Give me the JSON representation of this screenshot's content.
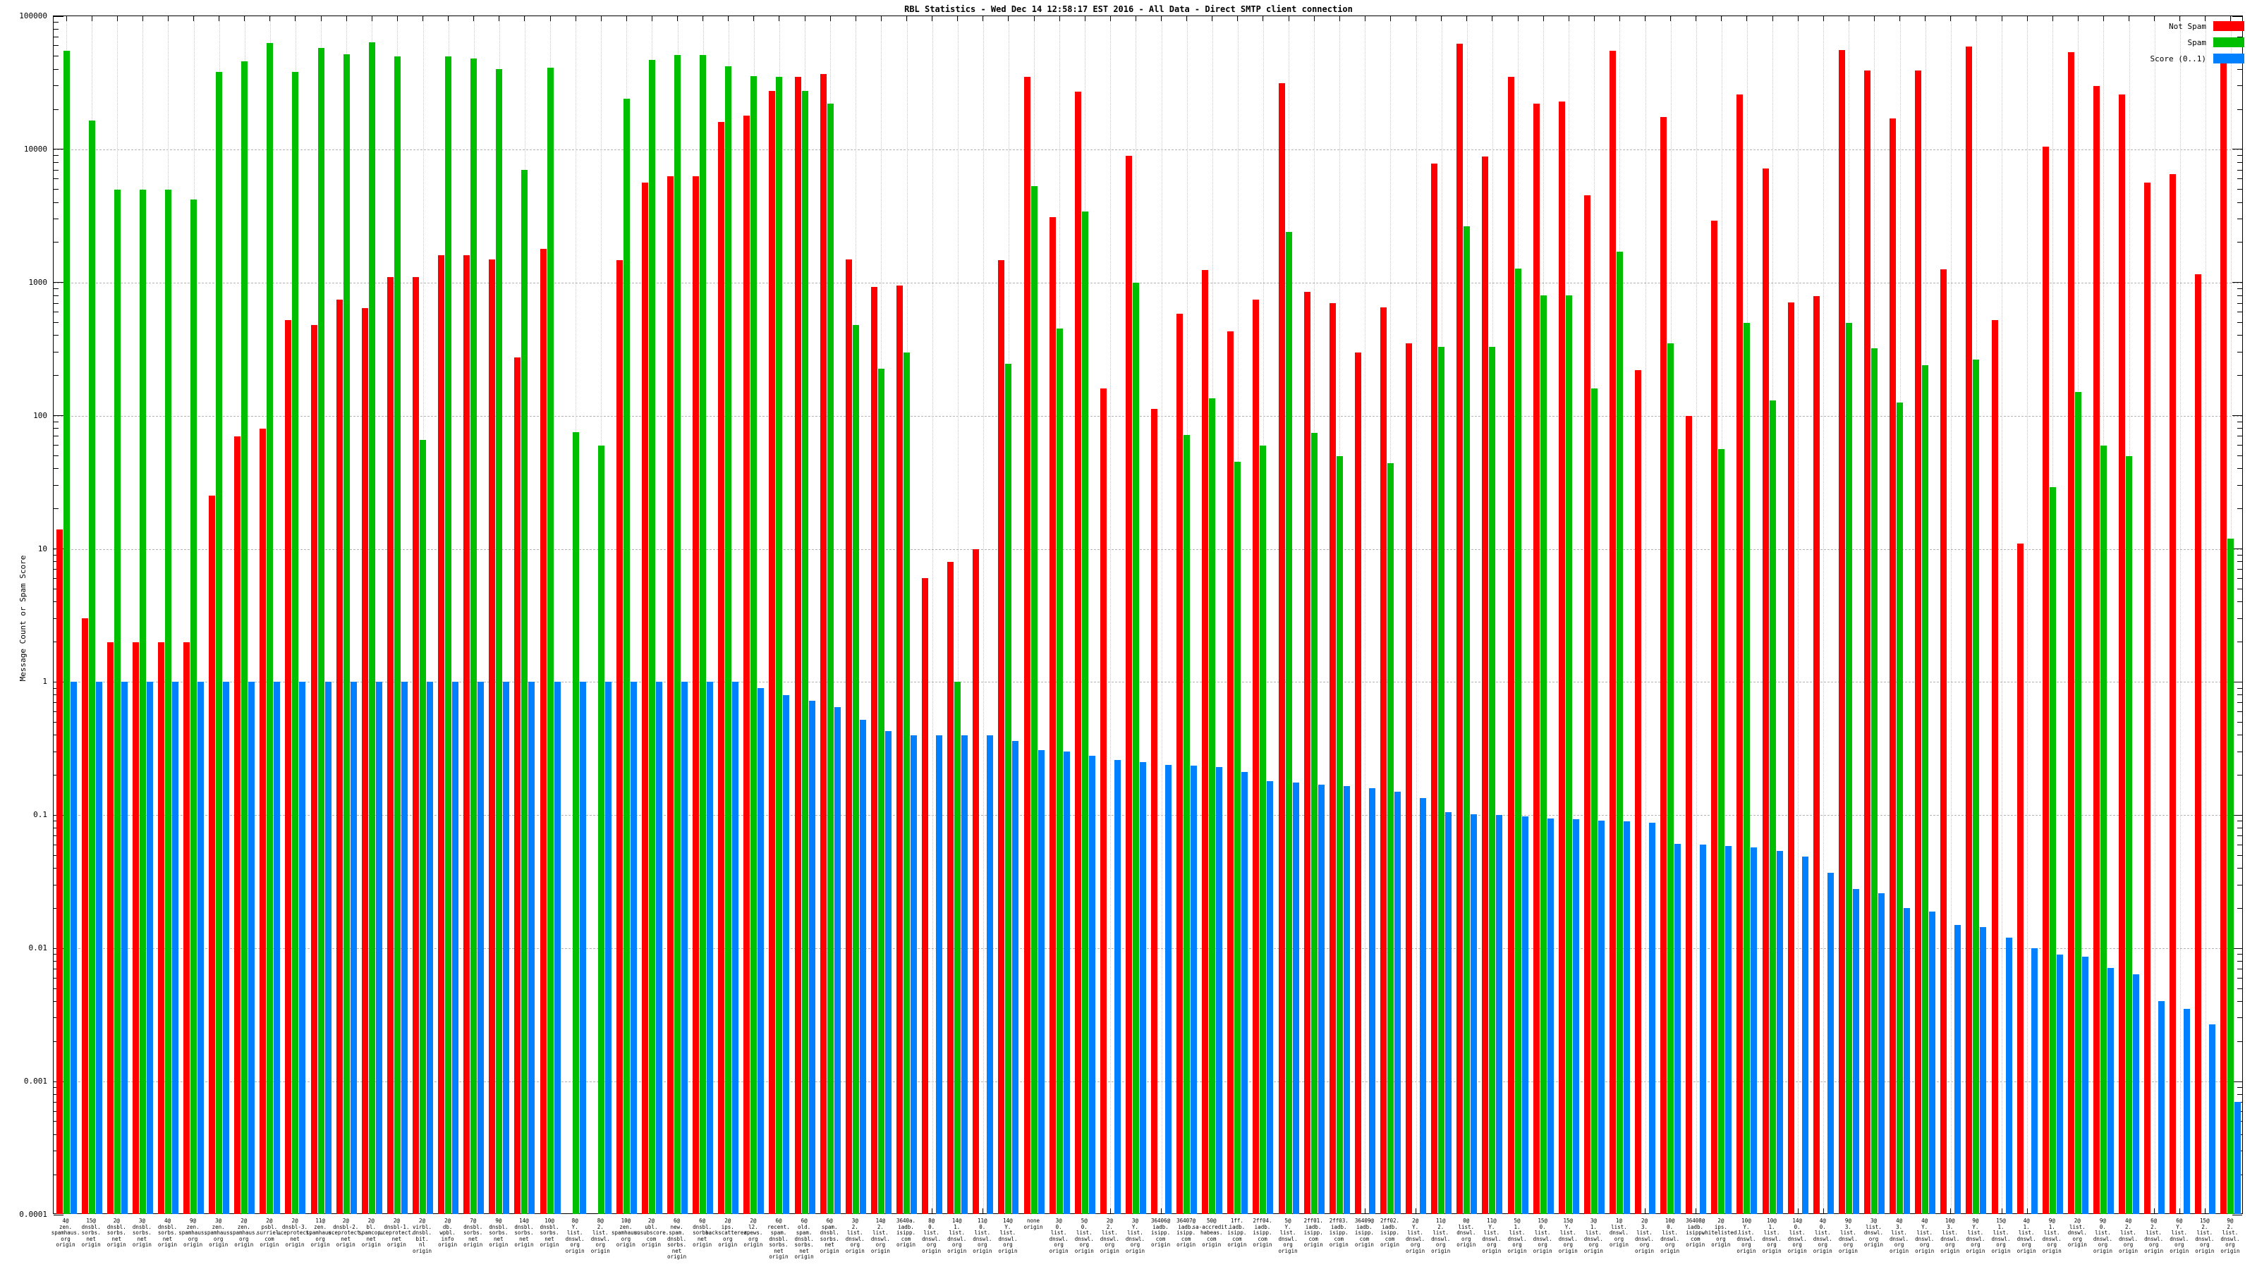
{
  "chart_data": {
    "type": "bar",
    "title": "RBL Statistics - Wed Dec 14 12:58:17 EST 2016 - All Data - Direct SMTP client connection",
    "ylabel": "Message Count or Spam Score",
    "xlabel": "",
    "yscale": "log",
    "ylim": [
      0.0001,
      100000
    ],
    "ytick_labels": [
      "100000",
      "10000",
      "1000",
      "100",
      "10",
      "1",
      "0.1",
      "0.01",
      "0.001",
      "0.0001"
    ],
    "grid": true,
    "legend_position": "top-right",
    "legend": [
      {
        "label": "Not Spam",
        "color": "#ff0000"
      },
      {
        "label": "Spam",
        "color": "#00bf00"
      },
      {
        "label": "Score (0..1)",
        "color": "#0080ff"
      }
    ],
    "categories": [
      "4@\nzen.\nspamhaus.\norg\norigin",
      "15@\ndnsbl.\nsorbs.\nnet\norigin",
      "2@\ndnsbl.\nsorbs.\nnet\norigin",
      "3@\ndnsbl.\nsorbs.\nnet\norigin",
      "4@\ndnsbl.\nsorbs.\nnet\norigin",
      "9@\nzen.\nspamhaus.\norg\norigin",
      "3@\nzen.\nspamhaus.\norg\norigin",
      "2@\nzen.\nspamhaus.\norg\norigin",
      "2@\npsbl.\nsurriel.\ncom\norigin",
      "2@\ndnsbl-3.\nuceprotect.\nnet\norigin",
      "11@\nzen.\nspamhaus.\norg\norigin",
      "2@\ndnsbl-2.\nuceprotect.\nnet\norigin",
      "2@\nbl.\nspamcop.\nnet\norigin",
      "2@\ndnsbl-1.\nuceprotect.\nnet\norigin",
      "2@\nvirbl.\ndnsbl.\nbit.\nnl\norigin",
      "2@\ndb.\nwpbl.\ninfo\norigin",
      "7@\ndnsbl.\nsorbs.\nnet\norigin",
      "9@\ndnsbl.\nsorbs.\nnet\norigin",
      "14@\ndnsbl.\nsorbs.\nnet\norigin",
      "10@\ndnsbl.\nsorbs.\nnet\norigin",
      "8@\nY.\nlist.\ndnswl.\norg\norigin",
      "8@\n2.\nlist.\ndnswl.\norg\norigin",
      "10@\nzen.\nspamhaus.\norg\norigin",
      "2@\nubl.\nunsubscore.\ncom\norigin",
      "6@\nnew.\nspam.\ndnsbl.\nsorbs.\nnet\norigin",
      "6@\ndnsbl.\nsorbs.\nnet\norigin",
      "2@\nips.\nbackscatterer.\norg\norigin",
      "2@\nl2.\napews.\norg\norigin",
      "6@\nrecent.\nspam.\ndnsbl.\nsorbs.\nnet\norigin",
      "6@\nold.\nspam.\ndnsbl.\nsorbs.\nnet\norigin",
      "6@\nspam.\ndnsbl.\nsorbs.\nnet\norigin",
      "3@\n2.\nlist.\ndnswl.\norg\norigin",
      "14@\n2.\nlist.\ndnswl.\norg\norigin",
      "3640a.\niadb.\nisipp.\ncom\norigin",
      "8@\n0.\nlist.\ndnswl.\norg\norigin",
      "14@\n1.\nlist.\ndnswl.\norg\norigin",
      "11@\n0.\nlist.\ndnswl.\norg\norigin",
      "14@\nY.\nlist.\ndnswl.\norg\norigin",
      "none\norigin",
      "3@\n0.\nlist.\ndnswl.\norg\norigin",
      "5@\n0.\nlist.\ndnswl.\norg\norigin",
      "2@\n2.\nlist.\ndnswl.\norg\norigin",
      "3@\nY.\nlist.\ndnswl.\norg\norigin",
      "36406@\niadb.\nisipp.\ncom\norigin",
      "36407@\niadb.\nisipp.\ncom\norigin",
      "50@\nsa-accredit.\nhabeas.\ncom\norigin",
      "1ff.\niadb.\nisipp.\ncom\norigin",
      "2ff04.\niadb.\nisipp.\ncom\norigin",
      "5@\nY.\nlist.\ndnswl.\norg\norigin",
      "2ff01.\niadb.\nisipp.\ncom\norigin",
      "2ff03.\niadb.\nisipp.\ncom\norigin",
      "36409@\niadb.\nisipp.\ncom\norigin",
      "2ff02.\niadb.\nisipp.\ncom\norigin",
      "2@\nY.\nlist.\ndnswl.\norg\norigin",
      "11@\n2.\nlist.\ndnswl.\norg\norigin",
      "0@\nlist.\ndnswl.\norg\norigin",
      "11@\nY.\nlist.\ndnswl.\norg\norigin",
      "5@\n1.\nlist.\ndnswl.\norg\norigin",
      "15@\n0.\nlist.\ndnswl.\norg\norigin",
      "15@\nY.\nlist.\ndnswl.\norg\norigin",
      "3@\n1.\nlist.\ndnswl.\norg\norigin",
      "1@\nlist.\ndnswl.\norg\norigin",
      "2@\n3.\nlist.\ndnswl.\norg\norigin",
      "10@\n0.\nlist.\ndnswl.\norg\norigin",
      "36408@\niadb.\nisipp.\ncom\norigin",
      "2@\nips.\nwhitelisted.\norg\norigin",
      "10@\nY.\nlist.\ndnswl.\norg\norigin",
      "10@\n1.\nlist.\ndnswl.\norg\norigin",
      "14@\n0.\nlist.\ndnswl.\norg\norigin",
      "4@\n0.\nlist.\ndnswl.\norg\norigin",
      "9@\n3.\nlist.\ndnswl.\norg\norigin",
      "3@\nlist.\ndnswl.\norg\norigin",
      "4@\n3.\nlist.\ndnswl.\norg\norigin",
      "4@\nY.\nlist.\ndnswl.\norg\norigin",
      "10@\n3.\nlist.\ndnswl.\norg\norigin",
      "9@\nY.\nlist.\ndnswl.\norg\norigin",
      "15@\n1.\nlist.\ndnswl.\norg\norigin",
      "4@\n1.\nlist.\ndnswl.\norg\norigin",
      "9@\n1.\nlist.\ndnswl.\norg\norigin",
      "2@\nlist.\ndnswl.\norg\norigin",
      "9@\n0.\nlist.\ndnswl.\norg\norigin",
      "4@\n2.\nlist.\ndnswl.\norg\norigin",
      "6@\n2.\nlist.\ndnswl.\norg\norigin",
      "6@\nY.\nlist.\ndnswl.\norg\norigin",
      "15@\n2.\nlist.\ndnswl.\norg\norigin",
      "9@\n2.\nlist.\ndnswl.\norg\norigin"
    ],
    "series": [
      {
        "name": "Not Spam",
        "color": "#ff0000",
        "values": [
          14,
          3,
          2,
          2,
          2,
          2,
          25,
          70,
          80,
          520,
          480,
          740,
          640,
          1100,
          1100,
          1600,
          1600,
          1500,
          275,
          1800,
          0,
          0,
          1480,
          5600,
          6300,
          6300,
          16000,
          18000,
          27500,
          35000,
          37000,
          1500,
          930,
          950,
          6,
          8,
          10,
          1480,
          35000,
          3100,
          27000,
          160,
          9000,
          112,
          580,
          1240,
          430,
          740,
          31500,
          850,
          700,
          300,
          650,
          350,
          7800,
          62000,
          8800,
          35000,
          22000,
          23000,
          4500,
          55000,
          220,
          17500,
          100,
          2900,
          26000,
          7200,
          710,
          790,
          56000,
          39000,
          17000,
          39000,
          1250,
          59000,
          520,
          11,
          10500,
          54000,
          30000,
          26000,
          5600,
          6500,
          1150,
          50000
        ]
      },
      {
        "name": "Spam",
        "color": "#00bf00",
        "values": [
          55000,
          16500,
          5000,
          5000,
          5000,
          4200,
          38000,
          46000,
          63000,
          38000,
          58000,
          52000,
          64000,
          50000,
          66,
          50000,
          48000,
          40000,
          7000,
          41000,
          75,
          60,
          24000,
          47000,
          51000,
          51000,
          42000,
          35500,
          35000,
          27500,
          22000,
          480,
          225,
          300,
          0,
          1,
          0,
          245,
          5300,
          450,
          3400,
          0,
          1000,
          0,
          72,
          135,
          45,
          60,
          2400,
          74,
          50,
          0,
          44,
          0,
          330,
          2650,
          330,
          1270,
          800,
          800,
          160,
          1700,
          0,
          350,
          0,
          56,
          500,
          130,
          0,
          0,
          500,
          320,
          125,
          240,
          0,
          265,
          0,
          0,
          29,
          150,
          60,
          50,
          0,
          0,
          0,
          12
        ]
      },
      {
        "name": "Score (0..1)",
        "color": "#0080ff",
        "values": [
          1,
          1,
          1,
          1,
          1,
          1,
          1,
          1,
          1,
          1,
          1,
          1,
          1,
          1,
          1,
          1,
          1,
          1,
          1,
          1,
          1,
          1,
          1,
          1,
          1,
          1,
          1,
          0.9,
          0.8,
          0.72,
          0.65,
          0.52,
          0.43,
          0.4,
          0.4,
          0.4,
          0.4,
          0.36,
          0.31,
          0.3,
          0.28,
          0.26,
          0.25,
          0.24,
          0.235,
          0.23,
          0.21,
          0.18,
          0.175,
          0.17,
          0.165,
          0.16,
          0.15,
          0.135,
          0.105,
          0.102,
          0.1,
          0.098,
          0.095,
          0.093,
          0.091,
          0.09,
          0.088,
          0.061,
          0.06,
          0.059,
          0.057,
          0.054,
          0.049,
          0.037,
          0.028,
          0.026,
          0.02,
          0.019,
          0.015,
          0.0145,
          0.012,
          0.01,
          0.009,
          0.0087,
          0.0071,
          0.0064,
          0.004,
          0.0035,
          0.0027,
          0.0007
        ]
      }
    ]
  }
}
